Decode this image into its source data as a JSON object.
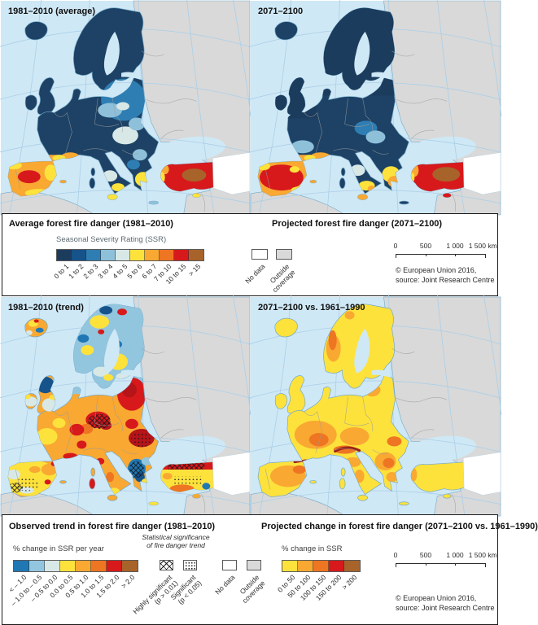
{
  "panels": [
    {
      "label": "1981–2010 (average)"
    },
    {
      "label": "2071–2100"
    },
    {
      "label": "1981–2010 (trend)"
    },
    {
      "label": "2071–2100 vs. 1961–1990"
    }
  ],
  "legend_top": {
    "title_left": "Average forest fire danger (1981–2010)",
    "title_right": "Projected forest fire danger  (2071–2100)",
    "scale_title": "Seasonal Severity Rating (SSR)",
    "classes": [
      {
        "label": "0 to 1",
        "color": "#1c3c5e"
      },
      {
        "label": "1 to 2",
        "color": "#16538a"
      },
      {
        "label": "2 to 3",
        "color": "#2e7eb3"
      },
      {
        "label": "3 to 4",
        "color": "#8fc0da"
      },
      {
        "label": "4 to 5",
        "color": "#d8e8e6"
      },
      {
        "label": "5 to 6",
        "color": "#fde23c"
      },
      {
        "label": "6 to 7",
        "color": "#f9a832"
      },
      {
        "label": "7 to 10",
        "color": "#ee7522"
      },
      {
        "label": "10 to 15",
        "color": "#d7191c"
      },
      {
        "label": "> 15",
        "color": "#a8632a"
      }
    ],
    "no_data": {
      "label": "No data",
      "color": "#ffffff"
    },
    "outside": {
      "label": "Outside\ncoverage",
      "color": "#d9d9d9"
    },
    "scalebar": {
      "labels": [
        "0",
        "500",
        "1 000",
        "1 500 km"
      ]
    },
    "credit": "© European Union 2016,\nsource: Joint Research Centre"
  },
  "legend_bottom": {
    "title_left": "Observed trend in forest fire danger (1981–2010)",
    "title_right": "Projected change in forest fire danger  (2071–2100 vs. 1961–1990)",
    "trend_scale_title": "% change in SSR per year",
    "trend_classes": [
      {
        "label": "< – 1.0",
        "color": "#1f78b4"
      },
      {
        "label": "– 1.0 to – 0.5",
        "color": "#92c5de"
      },
      {
        "label": "– 0.5 to 0.0",
        "color": "#d8e8e6"
      },
      {
        "label": "0.0 to 0.5",
        "color": "#fde23c"
      },
      {
        "label": "0.5 to 1.0",
        "color": "#f9a832"
      },
      {
        "label": "1.0 to 1.5",
        "color": "#ee7522"
      },
      {
        "label": "1.5 to 2.0",
        "color": "#d7191c"
      },
      {
        "label": "> 2.0",
        "color": "#a8632a"
      }
    ],
    "significance": {
      "title": "Statistical significance\nof fire danger trend",
      "classes": [
        {
          "label": "Highly significant\n(p > 0.01)",
          "pattern": "crosshatch"
        },
        {
          "label": "Significant\n(p < 0.05)",
          "pattern": "dots"
        }
      ]
    },
    "no_data": {
      "label": "No data",
      "color": "#ffffff"
    },
    "outside": {
      "label": "Outside\ncoverage",
      "color": "#d9d9d9"
    },
    "change_scale_title": "% change in SSR",
    "change_classes": [
      {
        "label": "0 to 50",
        "color": "#fde23c"
      },
      {
        "label": "50 to 100",
        "color": "#f9a832"
      },
      {
        "label": "100 to 150",
        "color": "#ee7522"
      },
      {
        "label": "150 to 200",
        "color": "#d7191c"
      },
      {
        "label": "> 200",
        "color": "#a8632a"
      }
    ],
    "scalebar": {
      "labels": [
        "0",
        "500",
        "1 000",
        "1 500 km"
      ]
    },
    "credit": "© European Union 2016,\nsource: Joint Research Centre"
  },
  "map_colors": {
    "sea": "#cfe8f5",
    "outside_land": "#d9d9d9",
    "no_data": "#ffffff",
    "graticule": "#aacfe8",
    "country_border": "#9b9b9b",
    "coastline": "#74aac8"
  }
}
